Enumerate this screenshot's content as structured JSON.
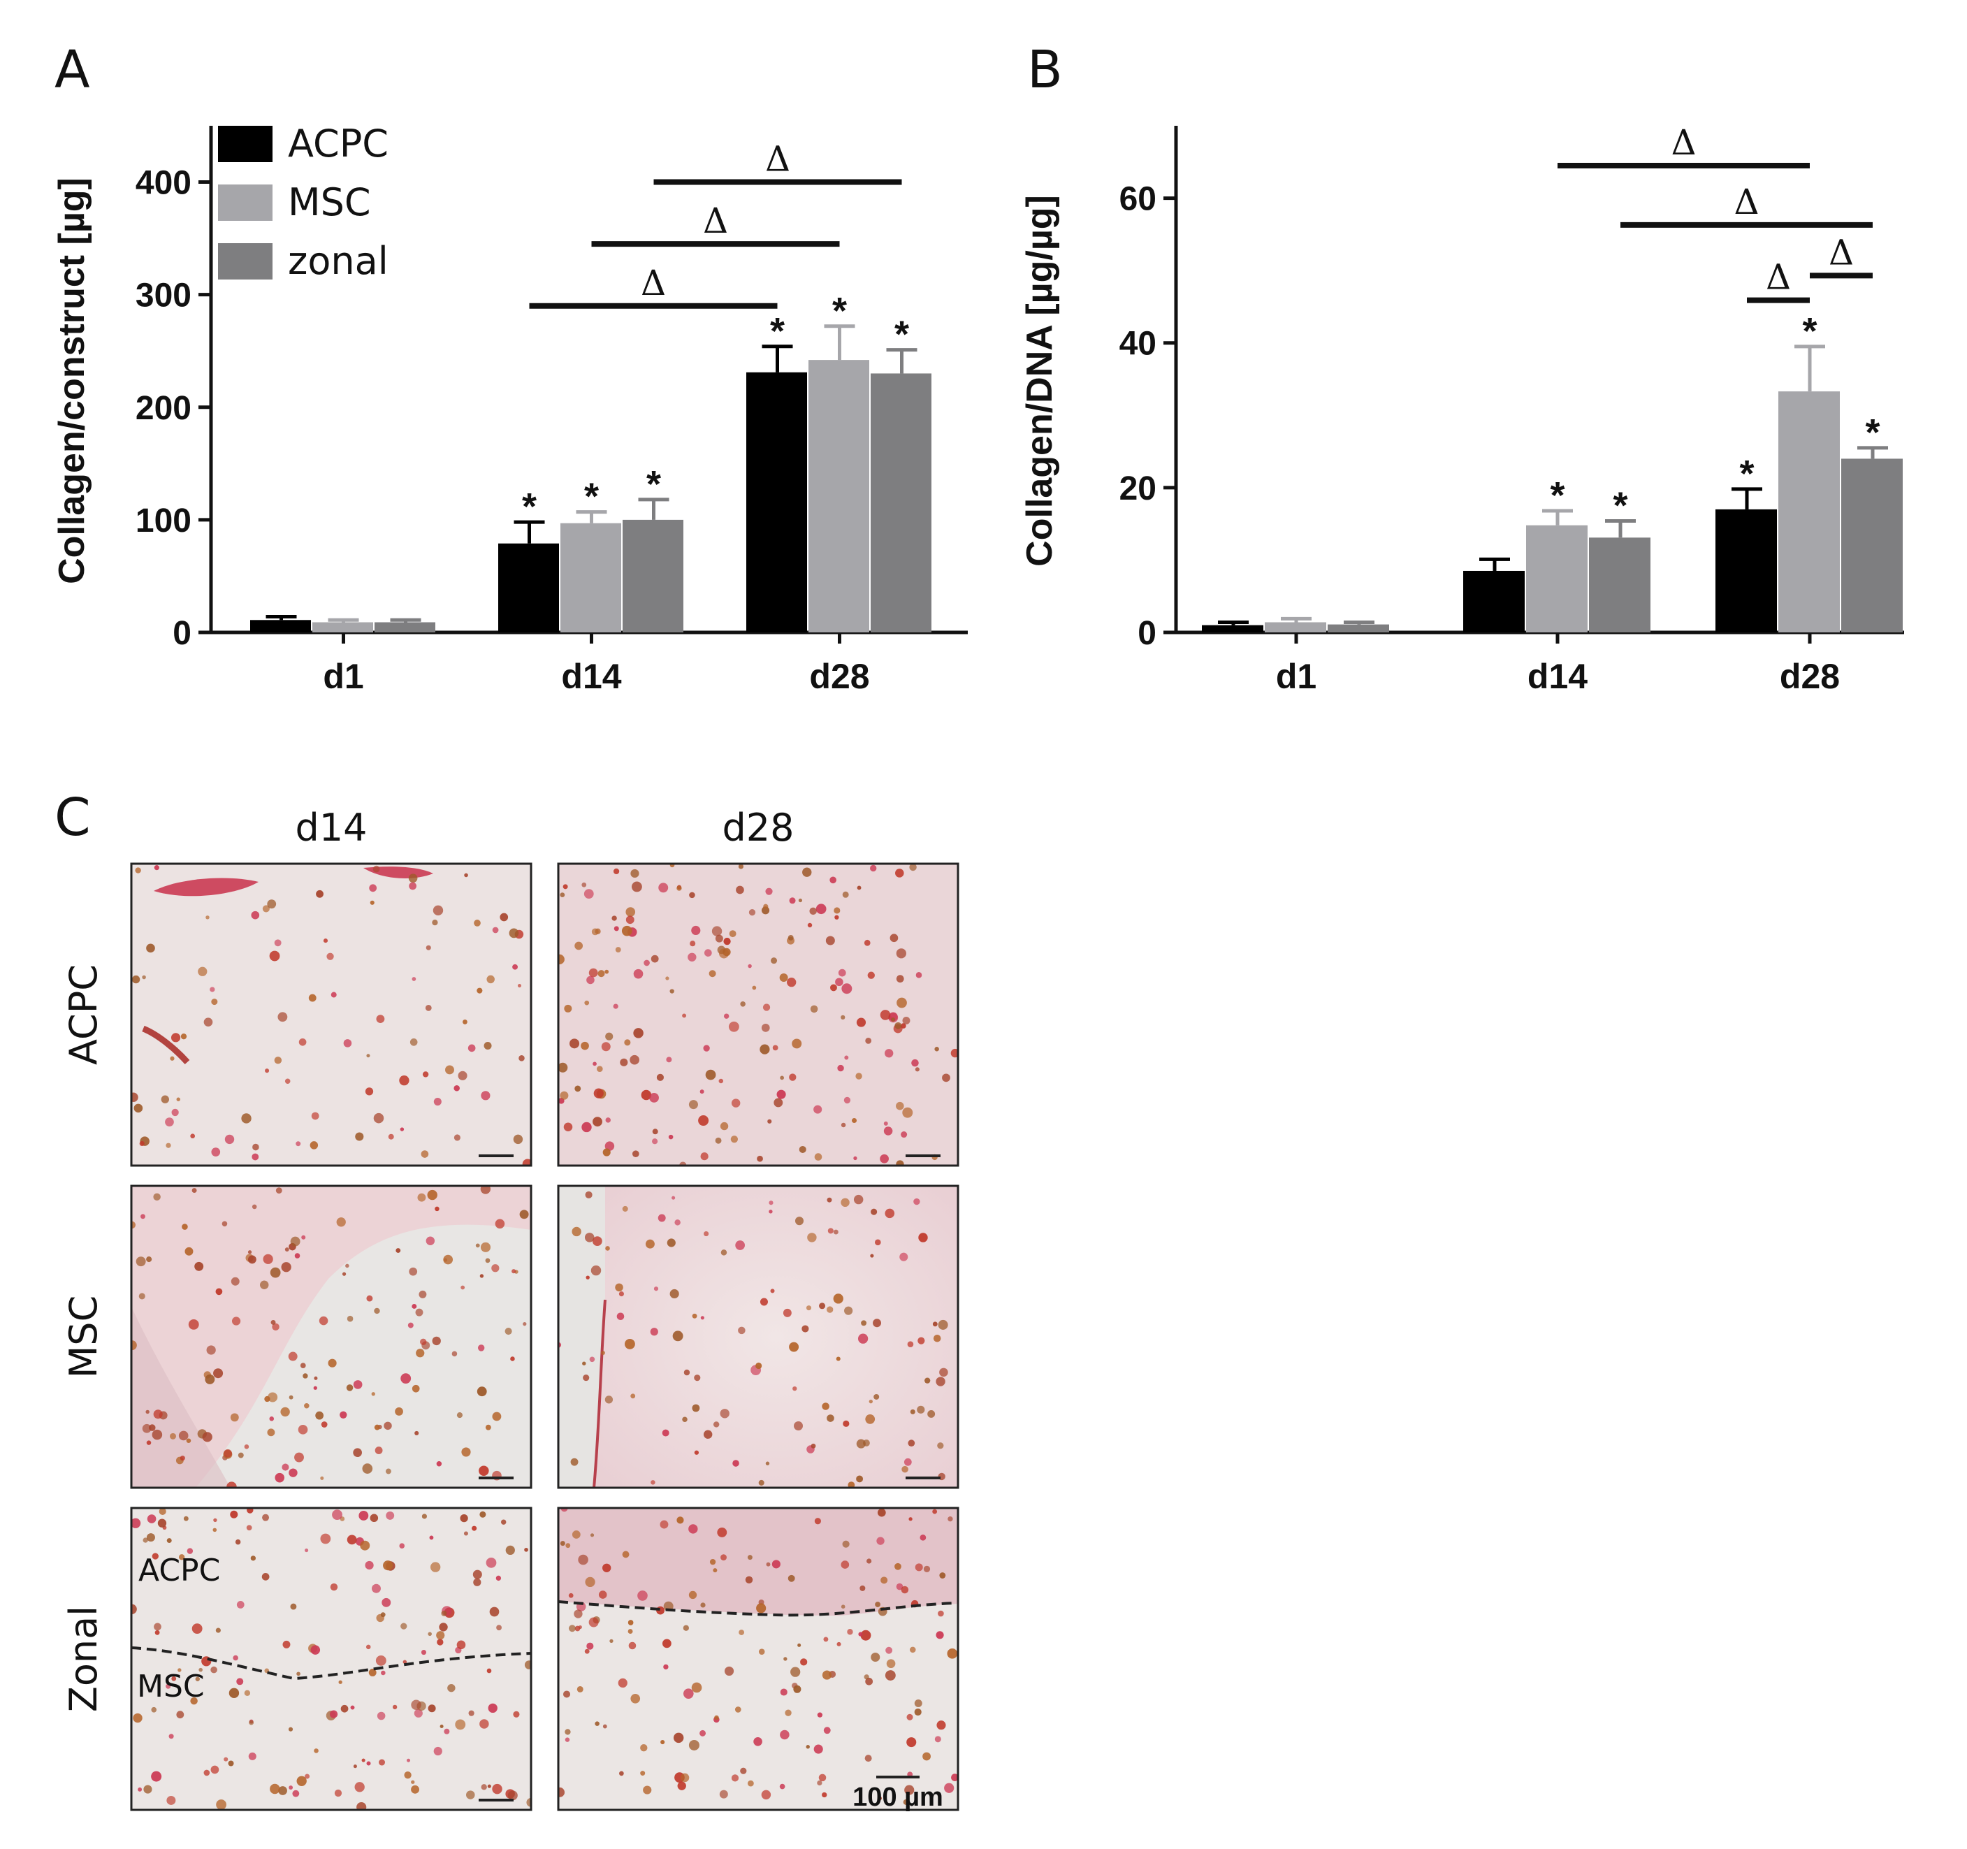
{
  "panels": {
    "a": {
      "label": "A"
    },
    "b": {
      "label": "B"
    },
    "c": {
      "label": "C"
    }
  },
  "legend": {
    "entries": [
      {
        "name": "ACPC",
        "color": "#000000"
      },
      {
        "name": "MSC",
        "color": "#a6a6aa"
      },
      {
        "name": "zonal",
        "color": "#7e7e80"
      }
    ]
  },
  "chart_data": [
    {
      "type": "bar",
      "panel": "A",
      "ylabel": "Collagen/construct [µg]",
      "categories": [
        "d1",
        "d14",
        "d28"
      ],
      "ylim": [
        0,
        450
      ],
      "yticks": [
        0,
        100,
        200,
        300,
        400
      ],
      "series": [
        {
          "name": "ACPC",
          "values": [
            11,
            79,
            231
          ],
          "errors": [
            3,
            19,
            23
          ],
          "color": "#000000"
        },
        {
          "name": "MSC",
          "values": [
            9,
            97,
            242
          ],
          "errors": [
            2,
            10,
            30
          ],
          "color": "#a6a6aa"
        },
        {
          "name": "zonal",
          "values": [
            9,
            100,
            230
          ],
          "errors": [
            2,
            18,
            21
          ],
          "color": "#7e7e80"
        }
      ],
      "asterisks": [
        {
          "category": "d14",
          "series": [
            "ACPC",
            "MSC",
            "zonal"
          ]
        },
        {
          "category": "d28",
          "series": [
            "ACPC",
            "MSC",
            "zonal"
          ]
        }
      ],
      "significance": [
        {
          "symbol": "Δ",
          "from": {
            "category": "d14",
            "series": "ACPC"
          },
          "to": {
            "category": "d28",
            "series": "ACPC"
          },
          "level": 290
        },
        {
          "symbol": "Δ",
          "from": {
            "category": "d14",
            "series": "MSC"
          },
          "to": {
            "category": "d28",
            "series": "MSC"
          },
          "level": 345
        },
        {
          "symbol": "Δ",
          "from": {
            "category": "d14",
            "series": "zonal"
          },
          "to": {
            "category": "d28",
            "series": "zonal"
          },
          "level": 400
        }
      ]
    },
    {
      "type": "bar",
      "panel": "B",
      "ylabel": "Collagen/DNA [µg/µg]",
      "categories": [
        "d1",
        "d14",
        "d28"
      ],
      "ylim": [
        0,
        70
      ],
      "yticks": [
        0,
        20,
        40,
        60
      ],
      "series": [
        {
          "name": "ACPC",
          "values": [
            1.0,
            8.5,
            17.0
          ],
          "errors": [
            0.4,
            1.6,
            2.8
          ],
          "color": "#000000"
        },
        {
          "name": "MSC",
          "values": [
            1.4,
            14.8,
            33.3
          ],
          "errors": [
            0.5,
            2.0,
            6.2
          ],
          "color": "#a6a6aa"
        },
        {
          "name": "zonal",
          "values": [
            1.1,
            13.1,
            24.0
          ],
          "errors": [
            0.3,
            2.3,
            1.5
          ],
          "color": "#7e7e80"
        }
      ],
      "asterisks": [
        {
          "category": "d14",
          "series": [
            "MSC",
            "zonal"
          ]
        },
        {
          "category": "d28",
          "series": [
            "ACPC",
            "MSC",
            "zonal"
          ]
        }
      ],
      "significance": [
        {
          "symbol": "Δ",
          "from": {
            "category": "d14",
            "series": "MSC"
          },
          "to": {
            "category": "d28",
            "series": "MSC"
          },
          "level": 64.5
        },
        {
          "symbol": "Δ",
          "from": {
            "category": "d14",
            "series": "zonal"
          },
          "to": {
            "category": "d28",
            "series": "zonal"
          },
          "level": 56.3
        },
        {
          "symbol": "Δ",
          "from": {
            "category": "d28",
            "series": "ACPC"
          },
          "to": {
            "category": "d28",
            "series": "MSC"
          },
          "level": 45.9
        },
        {
          "symbol": "Δ",
          "from": {
            "category": "d28",
            "series": "MSC"
          },
          "to": {
            "category": "d28",
            "series": "zonal"
          },
          "level": 49.3
        }
      ]
    }
  ],
  "micrographs": {
    "columns": [
      "d14",
      "d28"
    ],
    "rows": [
      "ACPC",
      "MSC",
      "Zonal"
    ],
    "zonal_labels": {
      "top": "ACPC",
      "bottom": "MSC"
    },
    "scalebar_label": "100 µm"
  }
}
